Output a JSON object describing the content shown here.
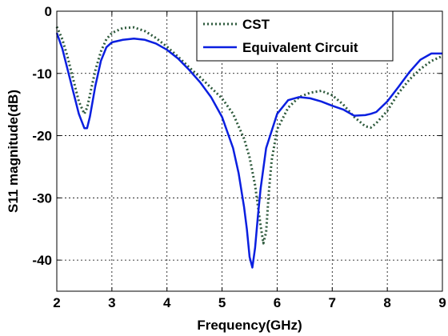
{
  "chart_data": {
    "type": "line",
    "xlabel": "Frequency(GHz)",
    "ylabel": "S11 magnitude(dB)",
    "xlim": [
      2,
      9
    ],
    "ylim": [
      -45,
      0
    ],
    "xticks": [
      2,
      3,
      4,
      5,
      6,
      7,
      8,
      9
    ],
    "yticks": [
      0,
      -10,
      -20,
      -30,
      -40
    ],
    "grid": true,
    "legend_position": "top-right",
    "series": [
      {
        "name": "CST",
        "style": "dotted",
        "color": "#2e5a3c",
        "x": [
          2.0,
          2.1,
          2.2,
          2.3,
          2.4,
          2.5,
          2.55,
          2.6,
          2.7,
          2.8,
          2.9,
          3.0,
          3.2,
          3.4,
          3.6,
          3.8,
          4.0,
          4.2,
          4.4,
          4.6,
          4.8,
          5.0,
          5.2,
          5.4,
          5.5,
          5.6,
          5.7,
          5.75,
          5.8,
          5.85,
          5.9,
          6.0,
          6.2,
          6.4,
          6.6,
          6.8,
          7.0,
          7.2,
          7.4,
          7.6,
          7.7,
          7.8,
          8.0,
          8.2,
          8.4,
          8.6,
          8.8,
          9.0
        ],
        "y": [
          -2.5,
          -4.5,
          -7.5,
          -11,
          -14.5,
          -16.5,
          -15.5,
          -13.5,
          -9.5,
          -6.5,
          -4.5,
          -3.5,
          -2.7,
          -2.6,
          -3.2,
          -4.3,
          -5.7,
          -7.3,
          -9.0,
          -10.6,
          -12.3,
          -14.0,
          -16.5,
          -20.5,
          -23.5,
          -28.0,
          -34.5,
          -37.3,
          -35.5,
          -29.0,
          -24.0,
          -19.0,
          -15.5,
          -13.8,
          -13.1,
          -12.8,
          -13.5,
          -15.0,
          -17.0,
          -18.5,
          -18.7,
          -18.0,
          -16.0,
          -13.2,
          -11.0,
          -9.3,
          -8.0,
          -7.2
        ]
      },
      {
        "name": "Equivalent Circuit",
        "style": "solid",
        "color": "#0a1fe0",
        "x": [
          2.0,
          2.1,
          2.2,
          2.3,
          2.4,
          2.5,
          2.55,
          2.6,
          2.7,
          2.8,
          2.9,
          3.0,
          3.2,
          3.4,
          3.6,
          3.8,
          4.0,
          4.2,
          4.4,
          4.6,
          4.8,
          5.0,
          5.2,
          5.3,
          5.4,
          5.45,
          5.5,
          5.55,
          5.6,
          5.65,
          5.7,
          5.8,
          6.0,
          6.2,
          6.4,
          6.6,
          6.8,
          7.0,
          7.2,
          7.4,
          7.6,
          7.7,
          7.8,
          8.0,
          8.2,
          8.4,
          8.6,
          8.8,
          9.0
        ],
        "y": [
          -3.5,
          -6.0,
          -9.5,
          -13.0,
          -16.5,
          -18.8,
          -18.8,
          -17.0,
          -12.0,
          -8.0,
          -5.8,
          -5.0,
          -4.6,
          -4.4,
          -4.6,
          -5.2,
          -6.2,
          -7.6,
          -9.4,
          -11.4,
          -13.8,
          -17.0,
          -22.0,
          -26.0,
          -31.5,
          -35.0,
          -39.5,
          -41.2,
          -38.0,
          -33.0,
          -28.5,
          -22.0,
          -16.5,
          -14.3,
          -13.8,
          -14.0,
          -14.5,
          -15.2,
          -15.8,
          -16.8,
          -16.7,
          -16.5,
          -16.2,
          -14.5,
          -12.2,
          -9.8,
          -7.8,
          -6.8,
          -6.8
        ]
      }
    ]
  }
}
